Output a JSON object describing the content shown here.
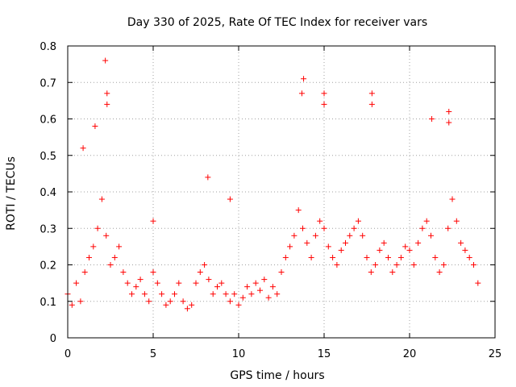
{
  "chart_data": {
    "type": "scatter",
    "title": "Day 330 of 2025, Rate Of TEC Index for receiver vars",
    "xlabel": "GPS time / hours",
    "ylabel": "ROTI / TECUs",
    "xlim": [
      0,
      25
    ],
    "ylim": [
      0,
      0.8
    ],
    "x_ticks": [
      "0",
      "5",
      "10",
      "15",
      "20",
      "25"
    ],
    "y_ticks": [
      "0",
      "0.1",
      "0.2",
      "0.3",
      "0.4",
      "0.5",
      "0.6",
      "0.7",
      "0.8"
    ],
    "grid": true,
    "marker": "+",
    "color": "#ff0000",
    "series": [
      {
        "name": "ROTI",
        "x": [
          0.0,
          0.25,
          0.5,
          0.75,
          1.0,
          1.25,
          1.5,
          1.75,
          2.0,
          2.25,
          2.5,
          2.75,
          3.0,
          3.25,
          3.5,
          3.75,
          4.0,
          4.25,
          4.5,
          4.75,
          5.0,
          5.25,
          5.5,
          5.75,
          6.0,
          6.25,
          6.5,
          6.75,
          7.0,
          7.25,
          7.5,
          7.75,
          8.0,
          8.25,
          8.5,
          8.75,
          9.0,
          9.25,
          9.5,
          9.75,
          10.0,
          10.25,
          10.5,
          10.75,
          11.0,
          11.25,
          11.5,
          11.75,
          12.0,
          12.25,
          12.5,
          12.75,
          13.0,
          13.25,
          13.5,
          13.75,
          14.0,
          14.25,
          14.5,
          14.75,
          15.0,
          15.25,
          15.5,
          15.75,
          16.0,
          16.25,
          16.5,
          16.75,
          17.0,
          17.25,
          17.5,
          17.75,
          18.0,
          18.25,
          18.5,
          18.75,
          19.0,
          19.25,
          19.5,
          19.75,
          20.0,
          20.25,
          20.5,
          20.75,
          21.0,
          21.25,
          21.5,
          21.75,
          22.0,
          22.25,
          22.5,
          22.75,
          23.0,
          23.25,
          23.5,
          23.75,
          24.0,
          0.9,
          1.6,
          2.2,
          2.3,
          2.3,
          13.8,
          13.7,
          15.0,
          15.0,
          17.8,
          17.8,
          22.3,
          22.3,
          21.3,
          8.2,
          5.0,
          9.5
        ],
        "y": [
          0.12,
          0.09,
          0.15,
          0.1,
          0.18,
          0.22,
          0.25,
          0.3,
          0.38,
          0.28,
          0.2,
          0.22,
          0.25,
          0.18,
          0.15,
          0.12,
          0.14,
          0.16,
          0.12,
          0.1,
          0.18,
          0.15,
          0.12,
          0.09,
          0.1,
          0.12,
          0.15,
          0.1,
          0.08,
          0.09,
          0.15,
          0.18,
          0.2,
          0.16,
          0.12,
          0.14,
          0.15,
          0.12,
          0.1,
          0.12,
          0.09,
          0.11,
          0.14,
          0.12,
          0.15,
          0.13,
          0.16,
          0.11,
          0.14,
          0.12,
          0.18,
          0.22,
          0.25,
          0.28,
          0.35,
          0.3,
          0.26,
          0.22,
          0.28,
          0.32,
          0.3,
          0.25,
          0.22,
          0.2,
          0.24,
          0.26,
          0.28,
          0.3,
          0.32,
          0.28,
          0.22,
          0.18,
          0.2,
          0.24,
          0.26,
          0.22,
          0.18,
          0.2,
          0.22,
          0.25,
          0.24,
          0.2,
          0.26,
          0.3,
          0.32,
          0.28,
          0.22,
          0.18,
          0.2,
          0.3,
          0.38,
          0.32,
          0.26,
          0.24,
          0.22,
          0.2,
          0.15,
          0.52,
          0.58,
          0.76,
          0.67,
          0.64,
          0.71,
          0.67,
          0.67,
          0.64,
          0.67,
          0.64,
          0.62,
          0.59,
          0.6,
          0.44,
          0.32,
          0.38
        ]
      }
    ]
  }
}
